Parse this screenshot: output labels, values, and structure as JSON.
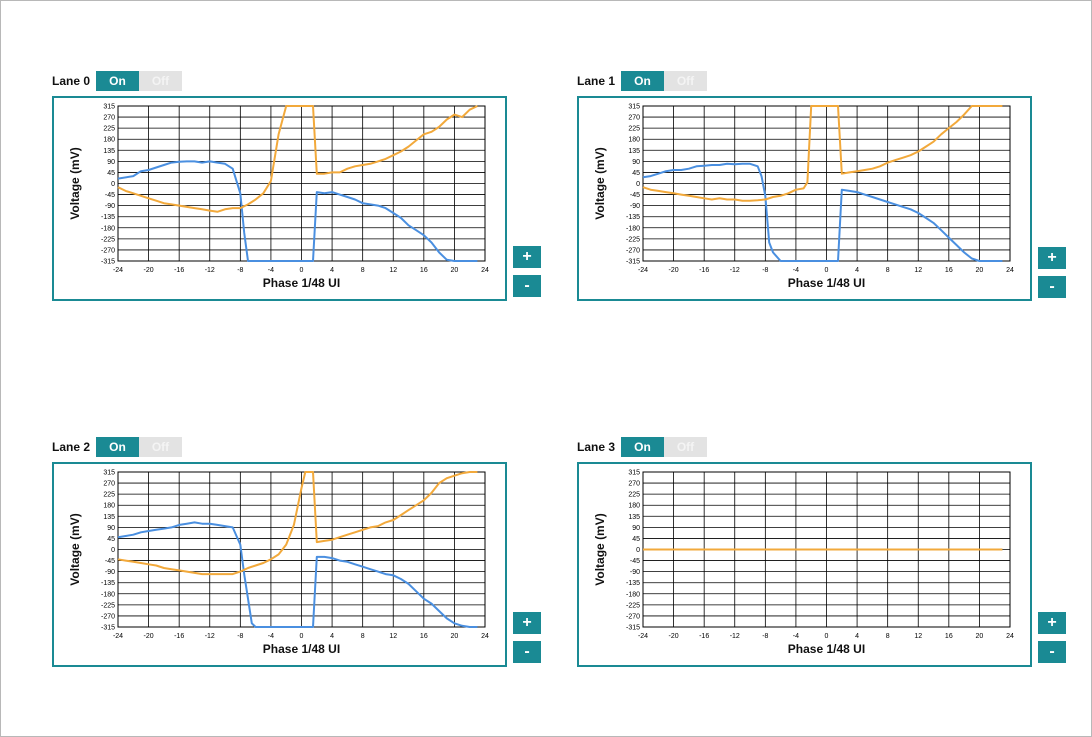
{
  "toggle_labels": {
    "on": "On",
    "off": "Off"
  },
  "buttons": {
    "plus": "+",
    "minus": "-"
  },
  "colors": {
    "accent": "#1a8a94",
    "series_blue": "#4a8fe0",
    "series_orange": "#f2a93b"
  },
  "chart_data": [
    {
      "title": "Lane 0",
      "type": "line",
      "xlabel": "Phase 1/48 UI",
      "ylabel": "Voltage (mV)",
      "xlim": [
        -24,
        24
      ],
      "ylim": [
        -315,
        315
      ],
      "xticks": [
        -24,
        -20,
        -16,
        -12,
        -8,
        -4,
        0,
        4,
        8,
        12,
        16,
        20,
        24
      ],
      "yticks": [
        315,
        270,
        225,
        180,
        135,
        90,
        45,
        0,
        -45,
        -90,
        -135,
        -180,
        -225,
        -270,
        -315
      ],
      "grid": true,
      "series": [
        {
          "color": "#4a8fe0",
          "x": [
            -24,
            -22,
            -21,
            -20,
            -19,
            -18,
            -17,
            -16,
            -15,
            -14,
            -13,
            -12,
            -11,
            -10,
            -9,
            -8,
            -7.5,
            -7,
            -6,
            -4,
            -2,
            0,
            1,
            1.5,
            2,
            3,
            4,
            5,
            6,
            7,
            8,
            9,
            10,
            11,
            12,
            13,
            14,
            15,
            16,
            17,
            18,
            19,
            20,
            21,
            22,
            23
          ],
          "y": [
            20,
            30,
            50,
            55,
            65,
            75,
            85,
            88,
            90,
            90,
            85,
            90,
            85,
            80,
            60,
            -40,
            -200,
            -315,
            -315,
            -315,
            -315,
            -315,
            -315,
            -315,
            -35,
            -40,
            -35,
            -45,
            -55,
            -65,
            -80,
            -85,
            -90,
            -100,
            -120,
            -140,
            -170,
            -190,
            -210,
            -240,
            -280,
            -310,
            -315,
            -315,
            -315,
            -315
          ]
        },
        {
          "color": "#f2a93b",
          "x": [
            -24,
            -23,
            -22,
            -21,
            -20,
            -19,
            -18,
            -17,
            -16,
            -15,
            -14,
            -13,
            -12,
            -11,
            -10,
            -9,
            -8,
            -7,
            -6,
            -5,
            -4,
            -3,
            -2,
            -1,
            0,
            1,
            1.5,
            2,
            3,
            4,
            5,
            6,
            7,
            8,
            9,
            10,
            11,
            12,
            13,
            14,
            15,
            16,
            17,
            18,
            19,
            20,
            21,
            22,
            23
          ],
          "y": [
            -15,
            -30,
            -40,
            -50,
            -60,
            -70,
            -80,
            -85,
            -90,
            -95,
            -100,
            -105,
            -110,
            -115,
            -105,
            -100,
            -100,
            -85,
            -65,
            -40,
            10,
            200,
            315,
            315,
            315,
            315,
            315,
            40,
            40,
            45,
            45,
            60,
            70,
            75,
            80,
            90,
            100,
            115,
            130,
            150,
            175,
            200,
            210,
            230,
            260,
            280,
            270,
            300,
            315
          ]
        }
      ]
    },
    {
      "title": "Lane 1",
      "type": "line",
      "xlabel": "Phase 1/48 UI",
      "ylabel": "Voltage (mV)",
      "xlim": [
        -24,
        24
      ],
      "ylim": [
        -315,
        315
      ],
      "xticks": [
        -24,
        -20,
        -16,
        -12,
        -8,
        -4,
        0,
        4,
        8,
        12,
        16,
        20,
        24
      ],
      "yticks": [
        315,
        270,
        225,
        180,
        135,
        90,
        45,
        0,
        -45,
        -90,
        -135,
        -180,
        -225,
        -270,
        -315
      ],
      "grid": true,
      "series": [
        {
          "color": "#4a8fe0",
          "x": [
            -24,
            -23,
            -22,
            -21,
            -20,
            -19,
            -18,
            -17,
            -16,
            -15,
            -14,
            -13,
            -12,
            -11,
            -10,
            -9,
            -8.5,
            -8,
            -7.5,
            -7,
            -6,
            -4,
            -2,
            0,
            1,
            1.5,
            2,
            3,
            4,
            5,
            6,
            7,
            8,
            9,
            10,
            11,
            12,
            13,
            14,
            15,
            16,
            17,
            18,
            19,
            20,
            21,
            22,
            23
          ],
          "y": [
            25,
            30,
            40,
            50,
            55,
            55,
            60,
            70,
            72,
            75,
            75,
            80,
            78,
            80,
            80,
            70,
            30,
            -50,
            -240,
            -280,
            -315,
            -315,
            -315,
            -315,
            -315,
            -315,
            -25,
            -30,
            -35,
            -45,
            -55,
            -65,
            -75,
            -85,
            -95,
            -105,
            -120,
            -140,
            -160,
            -190,
            -220,
            -250,
            -280,
            -305,
            -315,
            -315,
            -315,
            -315
          ]
        },
        {
          "color": "#f2a93b",
          "x": [
            -24,
            -23,
            -22,
            -21,
            -20,
            -19,
            -18,
            -17,
            -16,
            -15,
            -14,
            -13,
            -12,
            -11,
            -10,
            -9,
            -8,
            -7,
            -6,
            -5,
            -4,
            -3,
            -2.5,
            -2,
            0,
            1,
            1.5,
            2,
            3,
            4,
            5,
            6,
            7,
            8,
            9,
            10,
            11,
            12,
            13,
            14,
            15,
            16,
            17,
            18,
            19,
            20,
            21,
            22,
            23
          ],
          "y": [
            -15,
            -25,
            -30,
            -35,
            -40,
            -45,
            -50,
            -55,
            -60,
            -65,
            -60,
            -65,
            -65,
            -70,
            -70,
            -68,
            -65,
            -55,
            -50,
            -40,
            -25,
            -20,
            5,
            315,
            315,
            315,
            315,
            40,
            45,
            50,
            55,
            60,
            70,
            85,
            95,
            105,
            115,
            130,
            150,
            170,
            200,
            225,
            250,
            280,
            315,
            315,
            315,
            315,
            315
          ]
        }
      ]
    },
    {
      "title": "Lane 2",
      "type": "line",
      "xlabel": "Phase 1/48 UI",
      "ylabel": "Voltage (mV)",
      "xlim": [
        -24,
        24
      ],
      "ylim": [
        -315,
        315
      ],
      "xticks": [
        -24,
        -20,
        -16,
        -12,
        -8,
        -4,
        0,
        4,
        8,
        12,
        16,
        20,
        24
      ],
      "yticks": [
        315,
        270,
        225,
        180,
        135,
        90,
        45,
        0,
        -45,
        -90,
        -135,
        -180,
        -225,
        -270,
        -315
      ],
      "grid": true,
      "series": [
        {
          "color": "#4a8fe0",
          "x": [
            -24,
            -23,
            -22,
            -21,
            -20,
            -19,
            -18,
            -17,
            -16,
            -15,
            -14,
            -13,
            -12,
            -11,
            -10,
            -9,
            -8,
            -7.5,
            -7,
            -6.5,
            -6,
            -4,
            -2,
            0,
            0.5,
            1,
            1.5,
            2,
            3,
            4,
            5,
            6,
            7,
            8,
            9,
            10,
            11,
            12,
            13,
            14,
            15,
            16,
            17,
            18,
            19,
            20,
            21,
            22,
            23
          ],
          "y": [
            50,
            55,
            60,
            70,
            75,
            80,
            85,
            90,
            100,
            105,
            110,
            105,
            105,
            100,
            95,
            90,
            20,
            -100,
            -200,
            -300,
            -315,
            -315,
            -315,
            -315,
            -315,
            -315,
            -315,
            -30,
            -30,
            -35,
            -45,
            -50,
            -60,
            -70,
            -80,
            -90,
            -100,
            -105,
            -120,
            -140,
            -170,
            -200,
            -220,
            -250,
            -280,
            -300,
            -310,
            -315,
            -315
          ]
        },
        {
          "color": "#f2a93b",
          "x": [
            -24,
            -23,
            -22,
            -21,
            -20,
            -19,
            -18,
            -17,
            -16,
            -15,
            -14,
            -13,
            -12,
            -11,
            -10,
            -9,
            -8,
            -7,
            -6,
            -5,
            -4,
            -3,
            -2,
            -1,
            0,
            0.5,
            1,
            1.5,
            2,
            3,
            4,
            5,
            6,
            7,
            8,
            9,
            10,
            11,
            12,
            13,
            14,
            15,
            16,
            17,
            18,
            19,
            20,
            21,
            22,
            23
          ],
          "y": [
            -40,
            -45,
            -50,
            -55,
            -60,
            -65,
            -75,
            -80,
            -85,
            -90,
            -95,
            -100,
            -100,
            -100,
            -100,
            -100,
            -90,
            -75,
            -65,
            -55,
            -40,
            -20,
            20,
            100,
            250,
            315,
            315,
            315,
            30,
            35,
            40,
            50,
            60,
            70,
            80,
            90,
            95,
            110,
            120,
            140,
            160,
            180,
            200,
            230,
            270,
            290,
            300,
            310,
            315,
            315
          ]
        }
      ]
    },
    {
      "title": "Lane 3",
      "type": "line",
      "xlabel": "Phase 1/48 UI",
      "ylabel": "Voltage (mV)",
      "xlim": [
        -24,
        24
      ],
      "ylim": [
        -315,
        315
      ],
      "xticks": [
        -24,
        -20,
        -16,
        -12,
        -8,
        -4,
        0,
        4,
        8,
        12,
        16,
        20,
        24
      ],
      "yticks": [
        315,
        270,
        225,
        180,
        135,
        90,
        45,
        0,
        -45,
        -90,
        -135,
        -180,
        -225,
        -270,
        -315
      ],
      "grid": true,
      "series": [
        {
          "color": "#4a8fe0",
          "x": [
            -24,
            23
          ],
          "y": [
            0,
            0
          ]
        },
        {
          "color": "#f2a93b",
          "x": [
            -24,
            23
          ],
          "y": [
            0,
            0
          ]
        }
      ]
    }
  ]
}
